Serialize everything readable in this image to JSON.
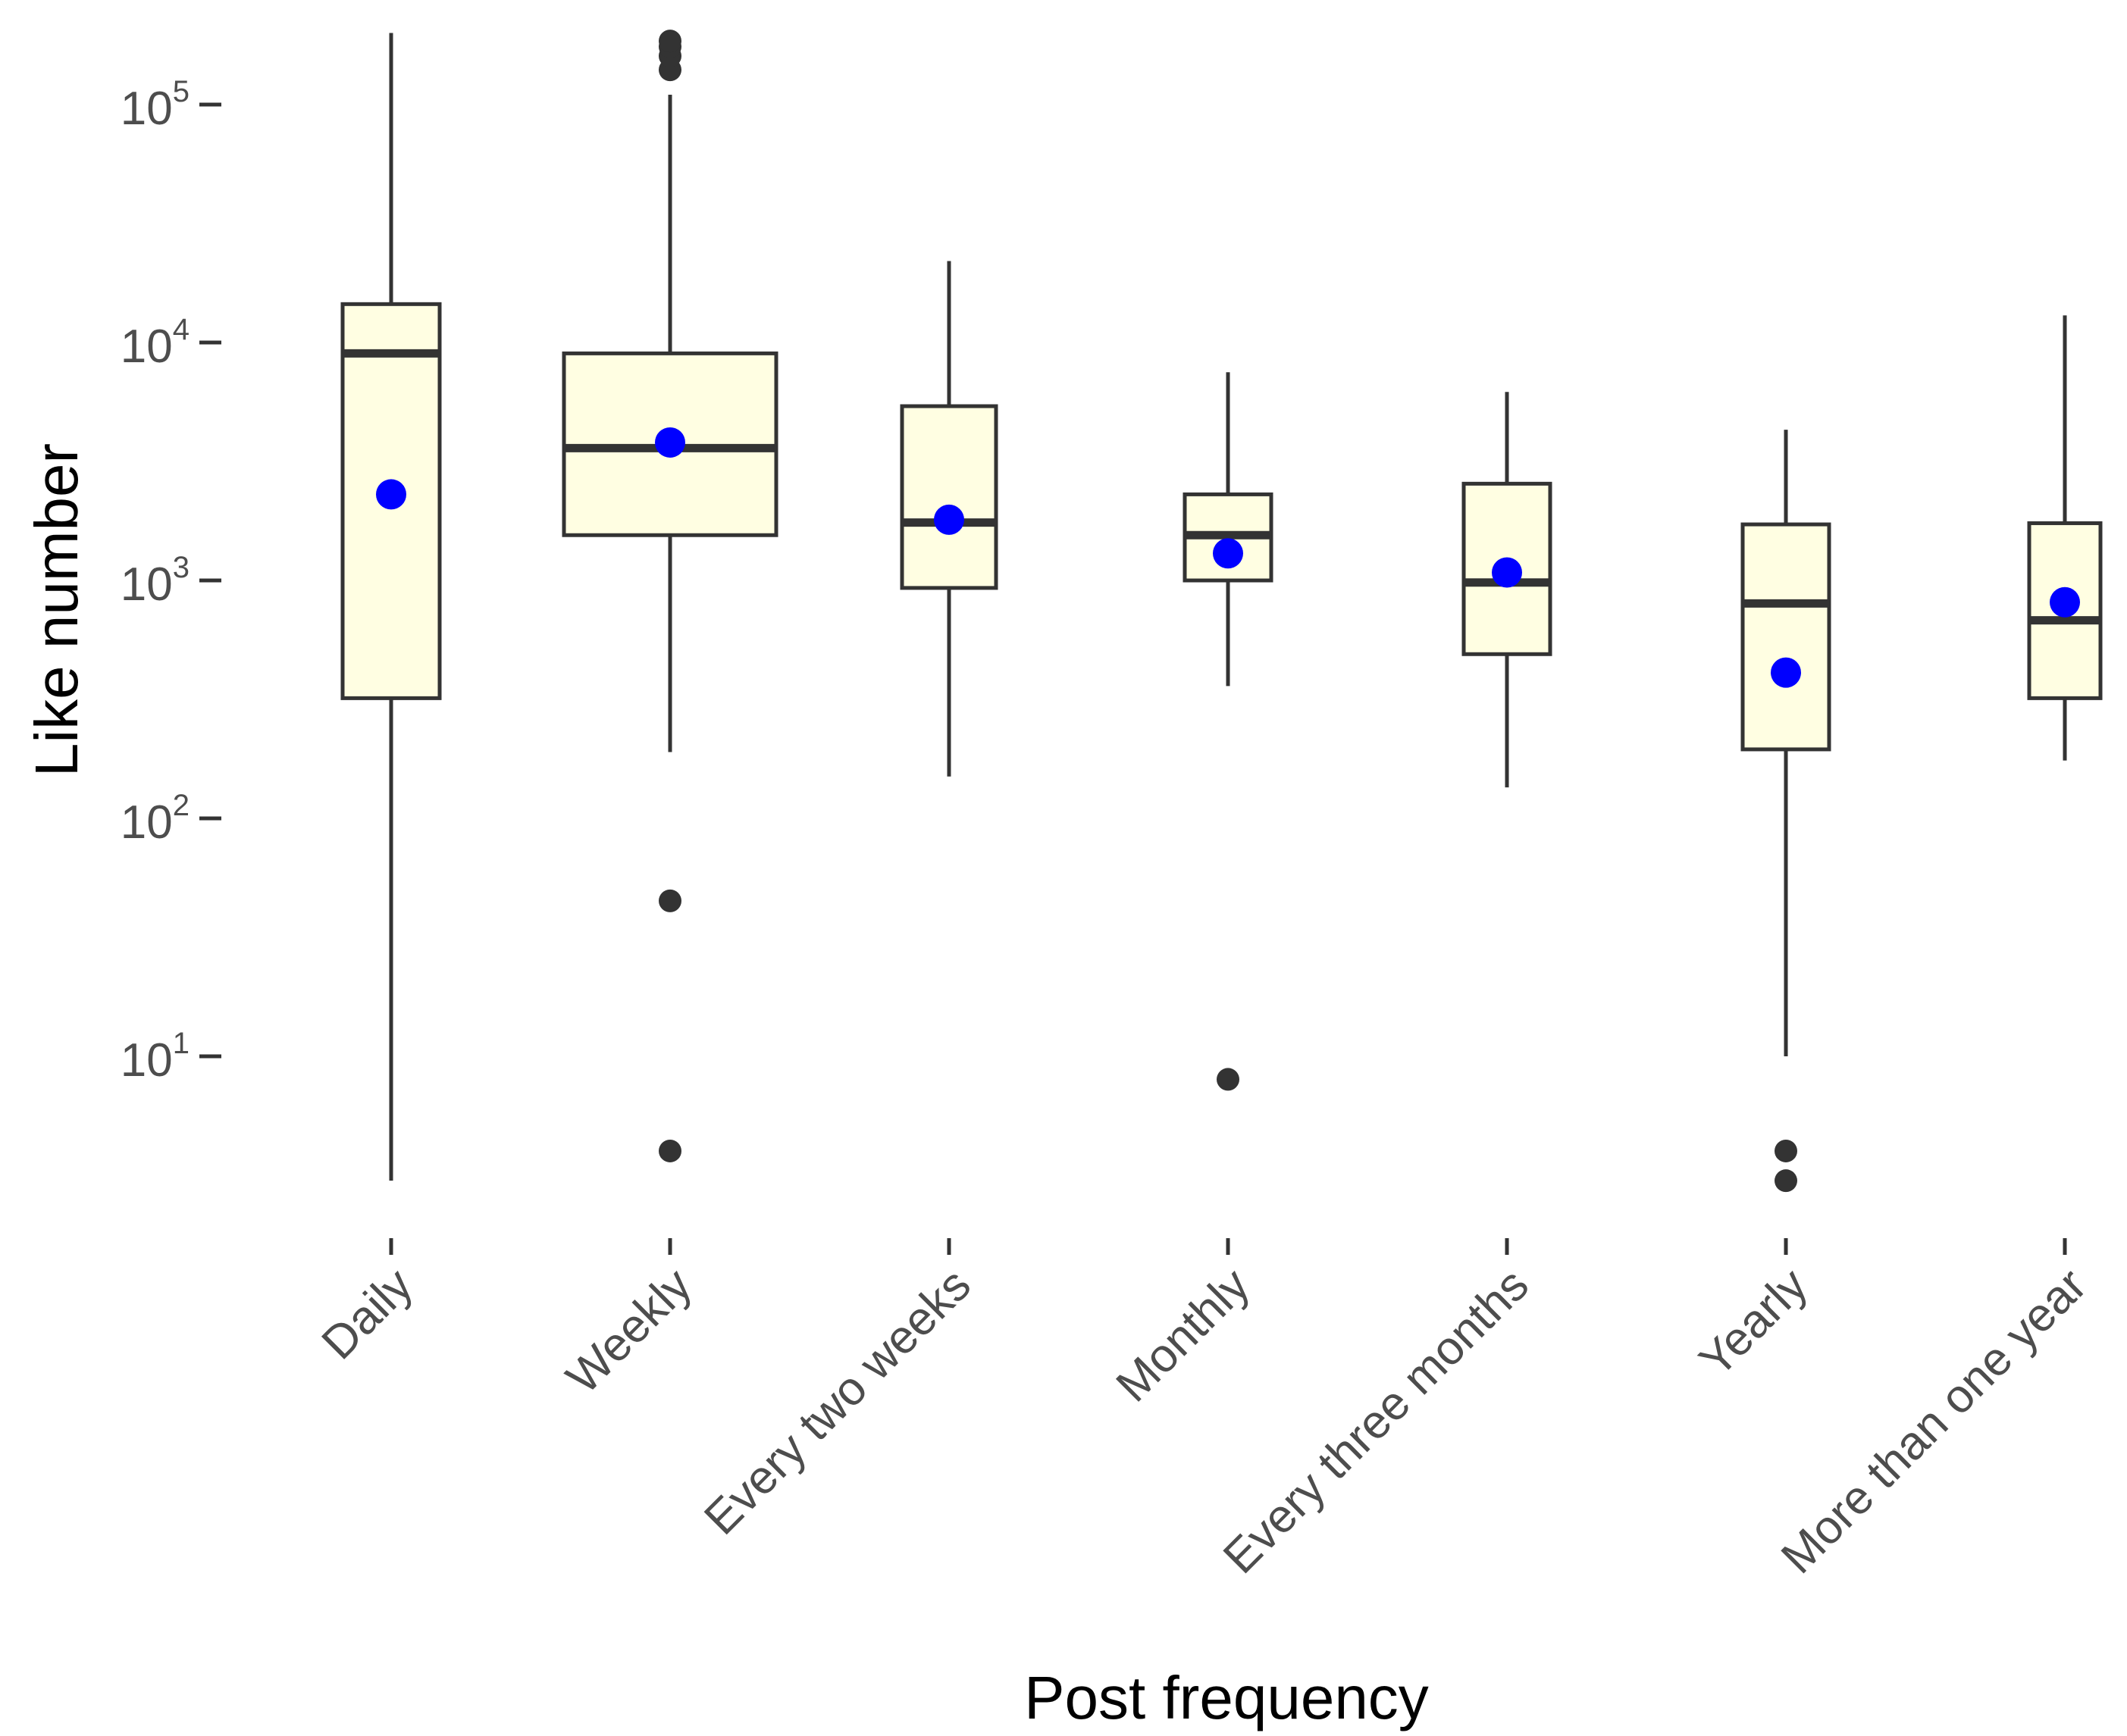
{
  "chart_data": {
    "type": "box",
    "xlabel": "Post frequency",
    "ylabel": "Like number",
    "y_scale": "log10",
    "ylim": [
      1.6,
      250000
    ],
    "y_ticks": [
      {
        "value": 10,
        "base": "10",
        "exp": "1"
      },
      {
        "value": 100,
        "base": "10",
        "exp": "2"
      },
      {
        "value": 1000,
        "base": "10",
        "exp": "3"
      },
      {
        "value": 10000,
        "base": "10",
        "exp": "4"
      },
      {
        "value": 100000,
        "base": "10",
        "exp": "5"
      }
    ],
    "categories": [
      "Daily",
      "Weekly",
      "Every two weeks",
      "Monthly",
      "Every three months",
      "Yearly",
      "More than one year"
    ],
    "boxes": [
      {
        "category": "Daily",
        "whisker_low": 3,
        "q1": 320,
        "median": 9000,
        "q3": 14500,
        "whisker_high": 200000,
        "mean": 2300,
        "outliers": []
      },
      {
        "category": "Weekly",
        "whisker_low": 190,
        "q1": 1550,
        "median": 3600,
        "q3": 9000,
        "whisker_high": 110000,
        "mean": 3800,
        "outliers": [
          4,
          45,
          140000,
          160000,
          175000,
          185000
        ]
      },
      {
        "category": "Every two weeks",
        "whisker_low": 150,
        "q1": 930,
        "median": 1750,
        "q3": 5400,
        "whisker_high": 22000,
        "mean": 1800,
        "outliers": []
      },
      {
        "category": "Monthly",
        "whisker_low": 360,
        "q1": 1000,
        "median": 1550,
        "q3": 2300,
        "whisker_high": 7500,
        "mean": 1300,
        "outliers": [
          8
        ]
      },
      {
        "category": "Every three months",
        "whisker_low": 135,
        "q1": 490,
        "median": 980,
        "q3": 2550,
        "whisker_high": 6200,
        "mean": 1080,
        "outliers": []
      },
      {
        "category": "Yearly",
        "whisker_low": 10,
        "q1": 195,
        "median": 800,
        "q3": 1720,
        "whisker_high": 4300,
        "mean": 410,
        "outliers": [
          3,
          4
        ]
      },
      {
        "category": "More than one year",
        "whisker_low": 175,
        "q1": 320,
        "median": 680,
        "q3": 1740,
        "whisker_high": 13000,
        "mean": 810,
        "outliers": []
      }
    ],
    "colors": {
      "box_fill": "#fffee2",
      "box_stroke": "#333333",
      "mean_point": "#0000ff",
      "outlier_point": "#333333",
      "tick_text": "#4d4d4d",
      "axis_title": "#000000"
    },
    "grid": false,
    "legend": "none"
  }
}
